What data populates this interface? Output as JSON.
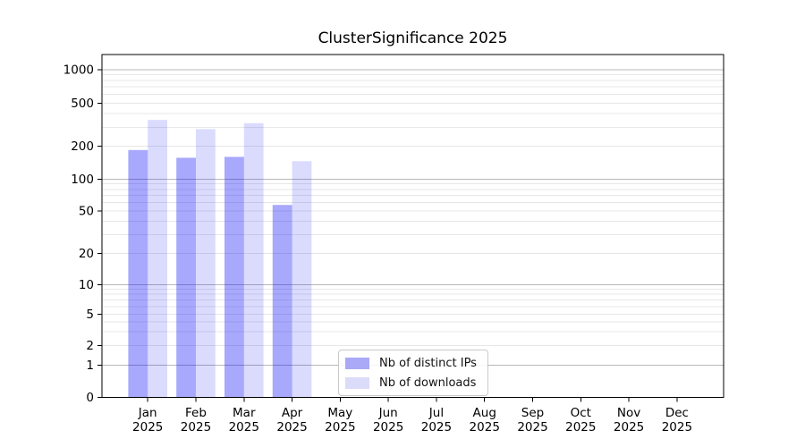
{
  "page": {
    "background": "#ffffff"
  },
  "chart_data": {
    "type": "bar",
    "title": "ClusterSignificance 2025",
    "xlabel": "",
    "ylabel": "",
    "yscale": "symlog",
    "ylim": [
      0,
      1350
    ],
    "grid": {
      "orientation": "horizontal",
      "which": "major+minor",
      "major_color": "#b8b8b8",
      "minor_color": "#e7e7e7"
    },
    "x": {
      "categories": [
        "Jan",
        "Feb",
        "Mar",
        "Apr",
        "May",
        "Jun",
        "Jul",
        "Aug",
        "Sep",
        "Oct",
        "Nov",
        "Dec"
      ],
      "year": "2025"
    },
    "yticks": [
      0,
      1,
      2,
      5,
      10,
      20,
      50,
      100,
      200,
      500,
      1000
    ],
    "series": [
      {
        "name": "Nb of distinct IPs",
        "key": "distinct-ips",
        "swatch": "#a9a9f7",
        "fill": "rgba(0,0,245,0.34)",
        "values": [
          185,
          157,
          160,
          57,
          null,
          null,
          null,
          null,
          null,
          null,
          null,
          null
        ]
      },
      {
        "name": "Nb of downloads",
        "key": "downloads",
        "swatch": "#dbdbfa",
        "fill": "rgba(0,0,245,0.14)",
        "values": [
          350,
          288,
          327,
          146,
          null,
          null,
          null,
          null,
          null,
          null,
          null,
          null
        ]
      }
    ],
    "legend": {
      "position": "lower-center"
    }
  }
}
